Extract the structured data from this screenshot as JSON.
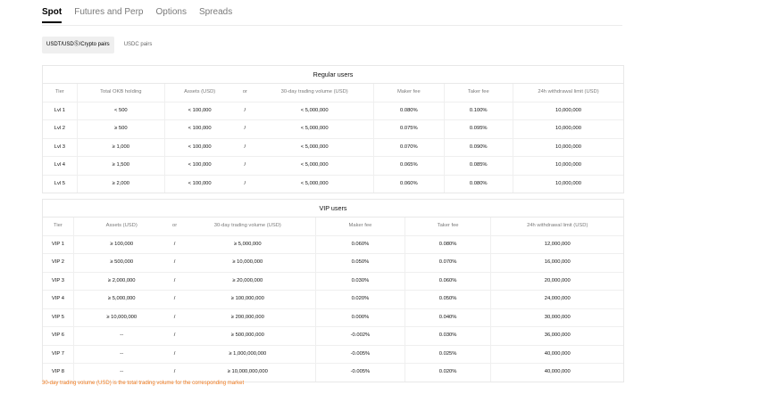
{
  "tabs": [
    {
      "label": "Spot",
      "active": true
    },
    {
      "label": "Futures and Perp",
      "active": false
    },
    {
      "label": "Options",
      "active": false
    },
    {
      "label": "Spreads",
      "active": false
    }
  ],
  "subtabs": [
    {
      "label": "USDT/USDⓈ/Crypto pairs",
      "active": true
    },
    {
      "label": "USDC pairs",
      "active": false
    }
  ],
  "regular": {
    "title": "Regular users",
    "headers": {
      "tier": "Tier",
      "holding": "Total OKB holding",
      "assets": "Assets (USD)",
      "or": "or",
      "volume": "30-day trading volume (USD)",
      "maker": "Maker fee",
      "taker": "Taker fee",
      "limit": "24h withdrawal limit (USD)"
    },
    "rows": [
      {
        "tier": "Lvl 1",
        "holding": "< 500",
        "assets": "< 100,000",
        "or": "/",
        "volume": "< 5,000,000",
        "maker": "0.080%",
        "taker": "0.100%",
        "limit": "10,000,000"
      },
      {
        "tier": "Lvl 2",
        "holding": "≥ 500",
        "assets": "< 100,000",
        "or": "/",
        "volume": "< 5,000,000",
        "maker": "0.075%",
        "taker": "0.095%",
        "limit": "10,000,000"
      },
      {
        "tier": "Lvl 3",
        "holding": "≥ 1,000",
        "assets": "< 100,000",
        "or": "/",
        "volume": "< 5,000,000",
        "maker": "0.070%",
        "taker": "0.090%",
        "limit": "10,000,000"
      },
      {
        "tier": "Lvl 4",
        "holding": "≥ 1,500",
        "assets": "< 100,000",
        "or": "/",
        "volume": "< 5,000,000",
        "maker": "0.065%",
        "taker": "0.085%",
        "limit": "10,000,000"
      },
      {
        "tier": "Lvl 5",
        "holding": "≥ 2,000",
        "assets": "< 100,000",
        "or": "/",
        "volume": "< 5,000,000",
        "maker": "0.060%",
        "taker": "0.080%",
        "limit": "10,000,000"
      }
    ]
  },
  "vip": {
    "title": "VIP users",
    "headers": {
      "tier": "Tier",
      "assets": "Assets (USD)",
      "or": "or",
      "volume": "30-day trading volume (USD)",
      "maker": "Maker fee",
      "taker": "Taker fee",
      "limit": "24h withdrawal limit (USD)"
    },
    "rows": [
      {
        "tier": "VIP 1",
        "assets": "≥ 100,000",
        "or": "/",
        "volume": "≥ 5,000,000",
        "maker": "0.060%",
        "taker": "0.080%",
        "limit": "12,000,000"
      },
      {
        "tier": "VIP 2",
        "assets": "≥ 500,000",
        "or": "/",
        "volume": "≥ 10,000,000",
        "maker": "0.050%",
        "taker": "0.070%",
        "limit": "16,000,000"
      },
      {
        "tier": "VIP 3",
        "assets": "≥ 2,000,000",
        "or": "/",
        "volume": "≥ 20,000,000",
        "maker": "0.030%",
        "taker": "0.060%",
        "limit": "20,000,000"
      },
      {
        "tier": "VIP 4",
        "assets": "≥ 5,000,000",
        "or": "/",
        "volume": "≥ 100,000,000",
        "maker": "0.020%",
        "taker": "0.050%",
        "limit": "24,000,000"
      },
      {
        "tier": "VIP 5",
        "assets": "≥ 10,000,000",
        "or": "/",
        "volume": "≥ 200,000,000",
        "maker": "0.000%",
        "taker": "0.040%",
        "limit": "30,000,000"
      },
      {
        "tier": "VIP 6",
        "assets": "--",
        "or": "/",
        "volume": "≥ 500,000,000",
        "maker": "-0.002%",
        "taker": "0.030%",
        "limit": "36,000,000"
      },
      {
        "tier": "VIP 7",
        "assets": "--",
        "or": "/",
        "volume": "≥ 1,000,000,000",
        "maker": "-0.005%",
        "taker": "0.025%",
        "limit": "40,000,000"
      },
      {
        "tier": "VIP 8",
        "assets": "--",
        "or": "/",
        "volume": "≥ 10,000,000,000",
        "maker": "-0.005%",
        "taker": "0.020%",
        "limit": "40,000,000"
      }
    ]
  },
  "footnote": "30-day trading volume (USD) is the total trading volume for the corresponding market",
  "colors": {
    "accent": "#f07a1e",
    "muted": "#7a7a7a",
    "border": "#e8e8e8"
  }
}
